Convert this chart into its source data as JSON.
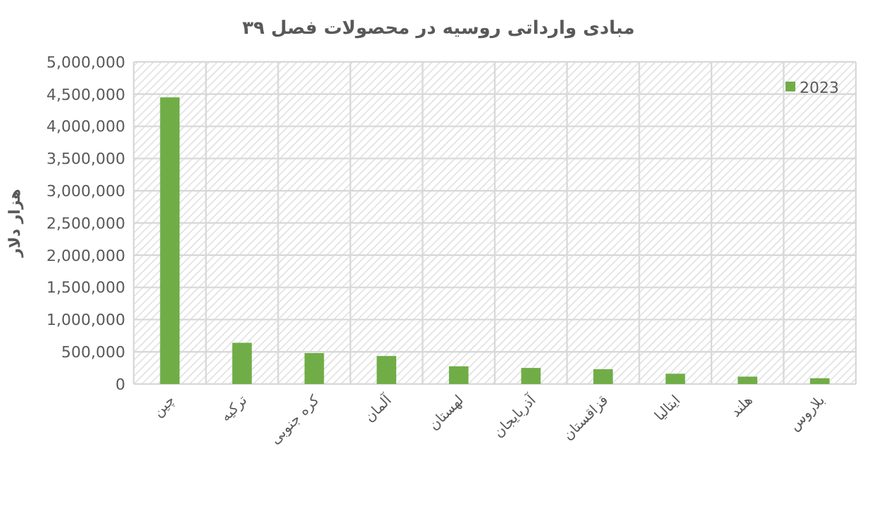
{
  "chart_data": {
    "type": "bar",
    "title": "مبادی وارداتی روسیه در محصولات فصل ۳۹",
    "ylabel": "هزار دلار",
    "categories": [
      "چین",
      "ترکیه",
      "کره جنوبی",
      "آلمان",
      "لهستان",
      "آذربایجان",
      "قزاقستان",
      "ایتالیا",
      "هلند",
      "بلاروس"
    ],
    "series": [
      {
        "name": "2023",
        "color": "#70ad47",
        "values": [
          4450000,
          640000,
          480000,
          435000,
          275000,
          250000,
          230000,
          160000,
          115000,
          90000
        ]
      }
    ],
    "ylim": [
      0,
      5000000
    ],
    "yticks": [
      {
        "value": 0,
        "label": "0"
      },
      {
        "value": 500000,
        "label": "500,000"
      },
      {
        "value": 1000000,
        "label": "1,000,000"
      },
      {
        "value": 1500000,
        "label": "1,500,000"
      },
      {
        "value": 2000000,
        "label": "2,000,000"
      },
      {
        "value": 2500000,
        "label": "2,500,000"
      },
      {
        "value": 3000000,
        "label": "3,000,000"
      },
      {
        "value": 3500000,
        "label": "3,500,000"
      },
      {
        "value": 4000000,
        "label": "4,000,000"
      },
      {
        "value": 4500000,
        "label": "4,500,000"
      },
      {
        "value": 5000000,
        "label": "5,000,000"
      }
    ],
    "grid": true,
    "legend": "top right"
  }
}
